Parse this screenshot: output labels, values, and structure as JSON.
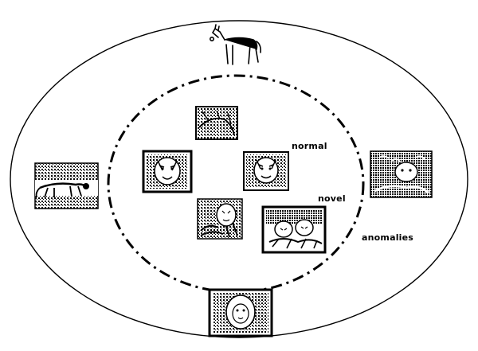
{
  "labels": {
    "normal": "normal",
    "novel": "novel",
    "anomalies": "anomalies"
  },
  "colors": {
    "ink": "#000000",
    "paper": "#ffffff"
  },
  "icons": {
    "horse": "horse-icon",
    "tiger_photo": "tiger-photo-icon",
    "anomaly_photo": "animal-photo-icon"
  }
}
